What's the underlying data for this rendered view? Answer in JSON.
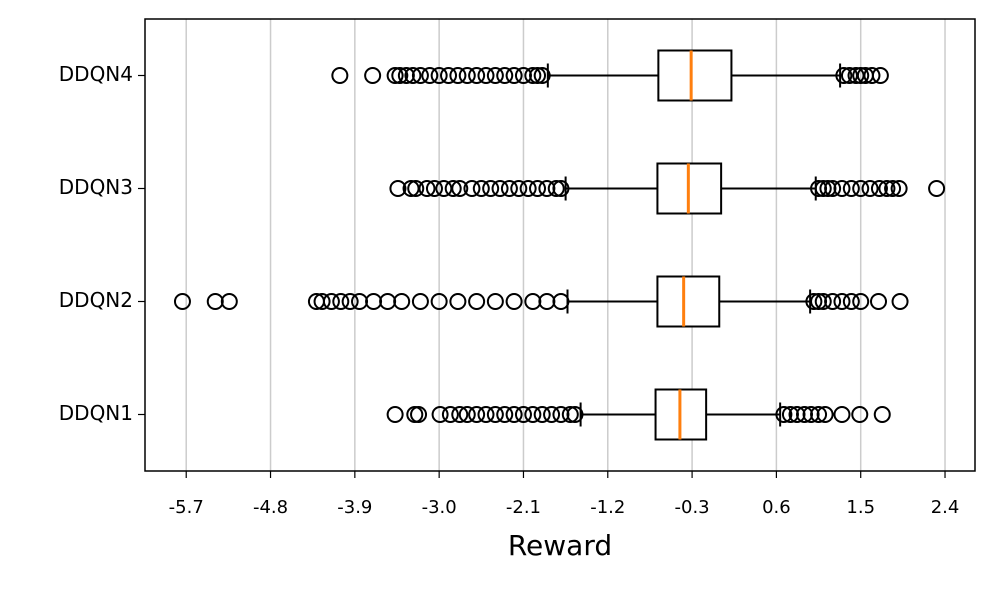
{
  "chart_data": {
    "type": "boxplot",
    "orientation": "horizontal",
    "xlabel": "Reward",
    "xlim": [
      -6.14,
      2.72
    ],
    "xticks": [
      -5.7,
      -4.8,
      -3.9,
      {
        "value": -3,
        "label": "-3.0"
      },
      -2.1,
      -1.2,
      -0.3,
      0.6,
      1.5,
      2.4
    ],
    "grid": true,
    "box_color": "#000000",
    "median_color": "#ff7f0e",
    "series": [
      {
        "name": "DDQN1",
        "whislo": -1.49,
        "q1": -0.69,
        "med": -0.43,
        "q3": -0.15,
        "whishi": 0.64,
        "fliers": [
          -3.47,
          -3.26,
          -3.22,
          -2.99,
          -2.88,
          -2.78,
          -2.7,
          -2.6,
          -2.5,
          -2.4,
          -2.3,
          -2.2,
          -2.1,
          -2.0,
          -1.9,
          -1.8,
          -1.7,
          -1.6,
          -1.55,
          0.68,
          0.75,
          0.82,
          0.9,
          0.97,
          1.05,
          1.12,
          1.3,
          1.49,
          1.73
        ]
      },
      {
        "name": "DDQN2",
        "whislo": -1.63,
        "q1": -0.67,
        "med": -0.39,
        "q3": -0.01,
        "whishi": 0.96,
        "fliers": [
          -5.74,
          -5.39,
          -5.24,
          -4.31,
          -4.25,
          -4.15,
          -4.05,
          -3.95,
          -3.85,
          -3.7,
          -3.55,
          -3.4,
          -3.2,
          -3.0,
          -2.8,
          -2.6,
          -2.4,
          -2.2,
          -2.0,
          -1.85,
          -1.7,
          1.0,
          1.05,
          1.1,
          1.2,
          1.3,
          1.4,
          1.5,
          1.69,
          1.92
        ]
      },
      {
        "name": "DDQN3",
        "whislo": -1.65,
        "q1": -0.67,
        "med": -0.34,
        "q3": 0.01,
        "whishi": 1.02,
        "fliers": [
          -3.44,
          -3.3,
          -3.25,
          -3.13,
          -3.05,
          -2.95,
          -2.85,
          -2.78,
          -2.65,
          -2.55,
          -2.45,
          -2.35,
          -2.25,
          -2.15,
          -2.05,
          -1.95,
          -1.85,
          -1.75,
          -1.7,
          1.05,
          1.1,
          1.15,
          1.2,
          1.3,
          1.4,
          1.5,
          1.6,
          1.7,
          1.78,
          1.84,
          1.91,
          2.31
        ]
      },
      {
        "name": "DDQN4",
        "whislo": -1.84,
        "q1": -0.66,
        "med": -0.31,
        "q3": 0.12,
        "whishi": 1.28,
        "fliers": [
          -4.06,
          -3.71,
          -3.47,
          -3.42,
          -3.35,
          -3.28,
          -3.2,
          -3.1,
          -3.0,
          -2.9,
          -2.8,
          -2.7,
          -2.6,
          -2.5,
          -2.4,
          -2.3,
          -2.2,
          -2.1,
          -2.0,
          -1.95,
          -1.9,
          1.32,
          1.38,
          1.45,
          1.5,
          1.55,
          1.62,
          1.71
        ]
      }
    ]
  }
}
